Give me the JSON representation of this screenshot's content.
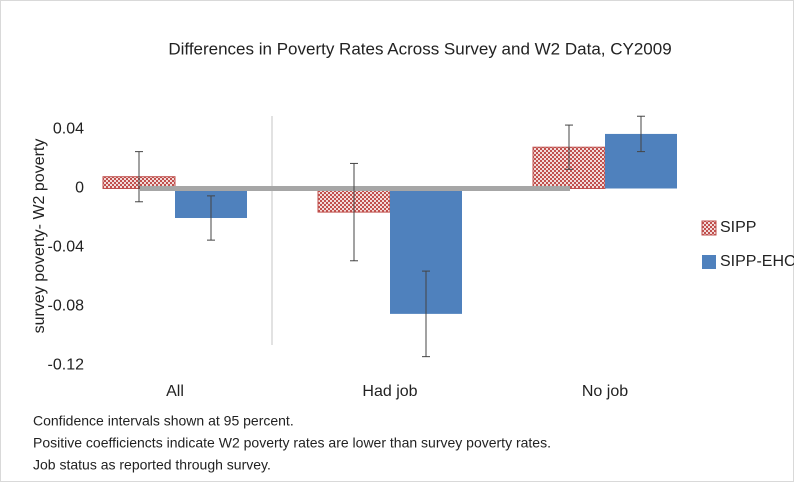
{
  "chart_data": {
    "type": "bar",
    "title": "Differences in Poverty Rates Across Survey and W2 Data, CY2009",
    "y_label": "survey poverty- W2 poverty",
    "categories": [
      "All",
      "Had job",
      "No job"
    ],
    "series": [
      {
        "name": "SIPP",
        "color": "#c0504d",
        "pattern": "dotted",
        "values": [
          0.008,
          -0.016,
          0.028
        ],
        "errors": [
          0.017,
          0.033,
          0.015
        ]
      },
      {
        "name": "SIPP-EHC",
        "color": "#4f81bd",
        "values": [
          -0.02,
          -0.085,
          0.037
        ],
        "errors": [
          0.015,
          0.029,
          0.012
        ]
      }
    ],
    "ylim": [
      -0.12,
      0.06
    ],
    "yticks": [
      -0.12,
      -0.08,
      -0.04,
      0,
      0.04
    ],
    "grid": false,
    "legend": "right",
    "notes": [
      "Confidence intervals shown at 95 percent.",
      "Positive coefficiencts indicate W2 poverty rates are lower than survey poverty rates.",
      "Job status as reported through survey."
    ]
  }
}
